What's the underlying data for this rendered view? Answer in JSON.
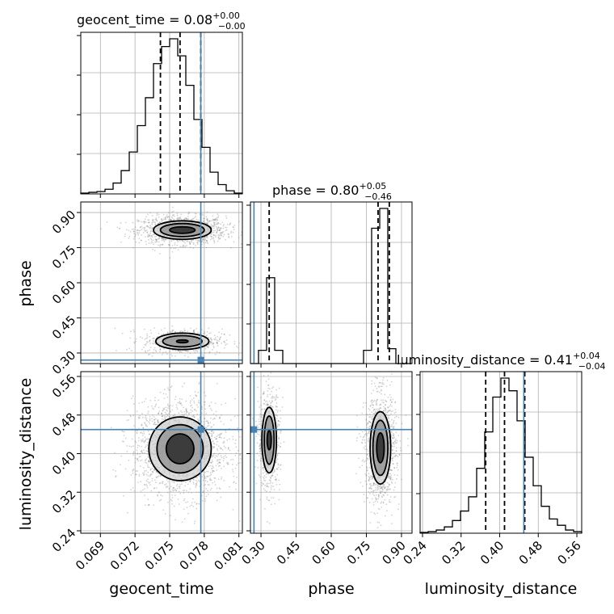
{
  "chart_data": {
    "type": "corner",
    "parameters": [
      "geocent_time",
      "phase",
      "luminosity_distance"
    ],
    "titles": [
      {
        "name": "geocent_time",
        "median": "0.08",
        "plus": "+0.00",
        "minus": "−0.00"
      },
      {
        "name": "phase",
        "median": "0.80",
        "plus": "+0.05",
        "minus": "−0.46"
      },
      {
        "name": "luminosity_distance",
        "median": "0.41",
        "plus": "+0.04",
        "minus": "−0.04"
      }
    ],
    "ranges": {
      "geocent_time": [
        0.0673,
        0.0813
      ],
      "phase": [
        0.255,
        0.945
      ],
      "luminosity_distance": [
        0.235,
        0.57
      ]
    },
    "ticks": {
      "geocent_time": [
        "0.069",
        "0.072",
        "0.075",
        "0.078",
        "0.081"
      ],
      "phase": [
        "0.30",
        "0.45",
        "0.60",
        "0.75",
        "0.90"
      ],
      "luminosity_distance": [
        "0.24",
        "0.32",
        "0.40",
        "0.48",
        "0.56"
      ]
    },
    "truths": {
      "geocent_time": 0.0777,
      "phase": 0.27,
      "luminosity_distance": 0.45
    },
    "quantiles": {
      "geocent_time": [
        0.0742,
        0.0759,
        0.0777
      ],
      "phase": [
        0.335,
        0.8,
        0.848
      ],
      "luminosity_distance": [
        0.371,
        0.41,
        0.452
      ]
    },
    "histograms": {
      "geocent_time": {
        "edges": [
          0.0673,
          0.068,
          0.0687,
          0.0694,
          0.0701,
          0.0708,
          0.0715,
          0.0722,
          0.0729,
          0.0736,
          0.0743,
          0.075,
          0.0757,
          0.0764,
          0.0771,
          0.0778,
          0.0785,
          0.0792,
          0.0799,
          0.0806,
          0.0813
        ],
        "counts": [
          0.005,
          0.01,
          0.015,
          0.03,
          0.07,
          0.15,
          0.27,
          0.44,
          0.62,
          0.84,
          0.95,
          1.0,
          0.89,
          0.7,
          0.48,
          0.3,
          0.14,
          0.06,
          0.02,
          0.005
        ]
      },
      "phase": {
        "edges": [
          0.255,
          0.2895,
          0.324,
          0.3585,
          0.393,
          0.4275,
          0.462,
          0.4965,
          0.531,
          0.5655,
          0.6,
          0.6345,
          0.669,
          0.7035,
          0.738,
          0.7725,
          0.807,
          0.8415,
          0.876,
          0.9105,
          0.945
        ],
        "counts": [
          0.0,
          0.08,
          0.52,
          0.08,
          0.0,
          0.0,
          0.0,
          0.0,
          0.0,
          0.0,
          0.0,
          0.0,
          0.0,
          0.0,
          0.08,
          0.82,
          0.94,
          0.09,
          0.0,
          0.0
        ]
      },
      "luminosity_distance": {
        "edges": [
          0.235,
          0.25175,
          0.2685,
          0.28525,
          0.302,
          0.31875,
          0.3355,
          0.35225,
          0.369,
          0.38575,
          0.4025,
          0.41925,
          0.436,
          0.45275,
          0.4695,
          0.48625,
          0.503,
          0.51975,
          0.5365,
          0.55325,
          0.57
        ],
        "counts": [
          0.005,
          0.01,
          0.02,
          0.04,
          0.08,
          0.14,
          0.23,
          0.41,
          0.64,
          0.86,
          0.98,
          0.9,
          0.71,
          0.48,
          0.3,
          0.17,
          0.09,
          0.05,
          0.02,
          0.01
        ]
      }
    },
    "joint_panels": [
      {
        "x": "geocent_time",
        "y": "phase",
        "blobs": [
          {
            "cx": 0.0761,
            "cy": 0.825,
            "levels": [
              [
                0.0025,
                0.0395
              ],
              [
                0.0019,
                0.028
              ],
              [
                0.0011,
                0.014
              ]
            ],
            "samples": 1400
          },
          {
            "cx": 0.0761,
            "cy": 0.35,
            "levels": [
              [
                0.0023,
                0.035
              ],
              [
                0.0017,
                0.024
              ],
              [
                0.0005,
                0.006
              ]
            ],
            "samples": 600
          }
        ]
      },
      {
        "x": "geocent_time",
        "y": "luminosity_distance",
        "blobs": [
          {
            "cx": 0.0759,
            "cy": 0.41,
            "levels": [
              [
                0.0027,
                0.066
              ],
              [
                0.002,
                0.05
              ],
              [
                0.0012,
                0.031
              ]
            ],
            "samples": 2000
          }
        ]
      },
      {
        "x": "phase",
        "y": "luminosity_distance",
        "blobs": [
          {
            "cx": 0.335,
            "cy": 0.428,
            "levels": [
              [
                0.031,
                0.068
              ],
              [
                0.021,
                0.05
              ],
              [
                0.009,
                0.02
              ]
            ],
            "samples": 700
          },
          {
            "cx": 0.81,
            "cy": 0.412,
            "levels": [
              [
                0.044,
                0.075
              ],
              [
                0.032,
                0.057
              ],
              [
                0.016,
                0.031
              ]
            ],
            "samples": 1300
          }
        ]
      }
    ],
    "grid": true,
    "colors": {
      "truth": "#4682b4",
      "lines": "#000000",
      "samples": "#808080"
    }
  }
}
